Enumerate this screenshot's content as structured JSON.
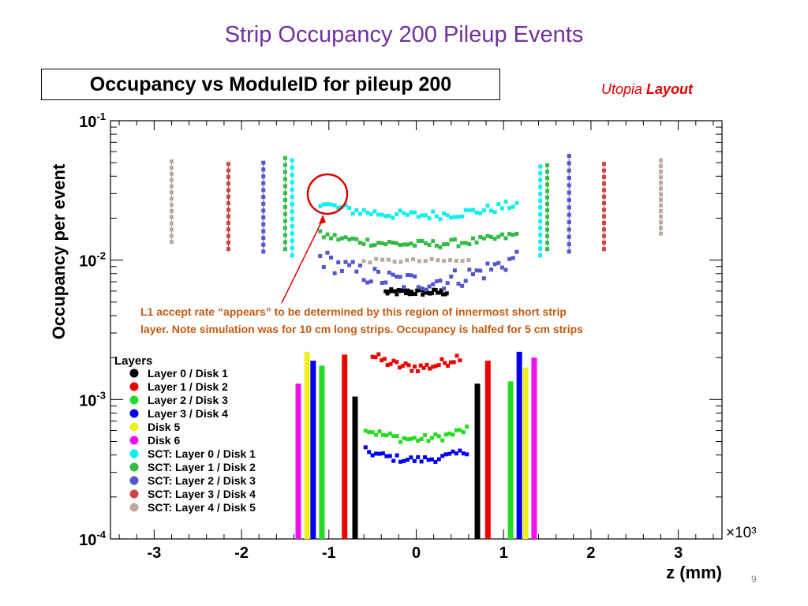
{
  "slide": {
    "title": "Strip Occupancy 200 Pileup Events",
    "number": "9"
  },
  "header": {
    "plot_title": "Occupancy vs ModuleID for pileup 200",
    "layout_label_1": "Utopia",
    "layout_label_2": "Layout"
  },
  "annotation": {
    "line1": "L1 accept rate “appears” to be determined by this region of innermost short strip",
    "line2": "layer. Note simulation was for 10 cm long strips. Occupancy is halfed for 5 cm strips",
    "color": "#c55a11",
    "circle_color": "#e00000"
  },
  "colors": {
    "title": "#7030a0",
    "layout": "#e00000"
  },
  "chart_data": {
    "type": "scatter",
    "xlabel": "z (mm)",
    "ylabel": "Occupancy per event",
    "x_multiplier": "×10³",
    "x_scale": "linear",
    "y_scale": "log",
    "xlim": [
      -3.5,
      3.5
    ],
    "ylim": [
      0.0001,
      0.1
    ],
    "xticks": [
      {
        "v": -3,
        "label": "-3"
      },
      {
        "v": -2,
        "label": "-2"
      },
      {
        "v": -1,
        "label": "-1"
      },
      {
        "v": 0,
        "label": "0"
      },
      {
        "v": 1,
        "label": "1"
      },
      {
        "v": 2,
        "label": "2"
      },
      {
        "v": 3,
        "label": "3"
      }
    ],
    "yticks": [
      {
        "v": 0.1,
        "base": "10",
        "exp": "-1"
      },
      {
        "v": 0.01,
        "base": "10",
        "exp": "-2"
      },
      {
        "v": 0.001,
        "base": "10",
        "exp": "-3"
      },
      {
        "v": 0.0001,
        "base": "10",
        "exp": "-4"
      }
    ],
    "legend_title": "Layers",
    "legend_position": "lower-left",
    "series": [
      {
        "name": "Layer 0 / Disk 1",
        "color": "#000000",
        "bands": [
          {
            "x0": -0.35,
            "x1": 0.35,
            "lo": 0.0055,
            "hi": 0.0065,
            "shape": "flat",
            "n": 34
          }
        ],
        "columns": [
          {
            "x": -0.7,
            "lo": 0.0001,
            "hi": 0.00105
          },
          {
            "x": 0.7,
            "lo": 0.0001,
            "hi": 0.0013
          }
        ]
      },
      {
        "name": "Layer 1 / Disk 2",
        "color": "#ee0000",
        "bands": [
          {
            "x0": -0.5,
            "x1": 0.5,
            "lo": 0.0017,
            "hi": 0.0022,
            "shape": "bowl",
            "n": 30
          }
        ],
        "columns": [
          {
            "x": -0.82,
            "lo": 0.0001,
            "hi": 0.0021
          },
          {
            "x": 0.82,
            "lo": 0.0001,
            "hi": 0.0019
          }
        ]
      },
      {
        "name": "Layer 2 / Disk 3",
        "color": "#22dd22",
        "bands": [
          {
            "x0": -0.58,
            "x1": 0.58,
            "lo": 0.00052,
            "hi": 0.00065,
            "shape": "bowl",
            "n": 30
          }
        ],
        "columns": [
          {
            "x": -1.08,
            "lo": 0.0001,
            "hi": 0.00175
          },
          {
            "x": 1.08,
            "lo": 0.0001,
            "hi": 0.00135
          }
        ]
      },
      {
        "name": "Layer 3 / Disk 4",
        "color": "#0000ee",
        "bands": [
          {
            "x0": -0.58,
            "x1": 0.58,
            "lo": 0.00037,
            "hi": 0.00045,
            "shape": "bowl",
            "n": 30
          }
        ],
        "columns": [
          {
            "x": -1.18,
            "lo": 0.0001,
            "hi": 0.0019
          },
          {
            "x": 1.18,
            "lo": 0.0001,
            "hi": 0.0022
          }
        ]
      },
      {
        "name": "Disk 5",
        "color": "#eeee22",
        "bands": [],
        "columns": [
          {
            "x": -1.25,
            "lo": 0.0001,
            "hi": 0.0022
          },
          {
            "x": 1.25,
            "lo": 0.0001,
            "hi": 0.0017
          }
        ]
      },
      {
        "name": "Disk 6",
        "color": "#ee11ee",
        "bands": [],
        "columns": [
          {
            "x": -1.35,
            "lo": 0.0001,
            "hi": 0.0013
          },
          {
            "x": 1.35,
            "lo": 0.0001,
            "hi": 0.002
          }
        ]
      },
      {
        "name": "SCT: Layer 0 / Disk 1",
        "color": "#11eeee",
        "bands": [
          {
            "x0": -1.1,
            "x1": 1.15,
            "lo": 0.021,
            "hi": 0.027,
            "shape": "bowl",
            "n": 55
          }
        ],
        "columns": [
          {
            "x": -1.42,
            "lo": 0.0108,
            "hi": 0.052
          },
          {
            "x": 1.42,
            "lo": 0.0108,
            "hi": 0.047
          }
        ]
      },
      {
        "name": "SCT: Layer 1 / Disk 2",
        "color": "#33bb44",
        "bands": [
          {
            "x0": -1.1,
            "x1": 1.15,
            "lo": 0.013,
            "hi": 0.016,
            "shape": "bowl",
            "n": 55
          }
        ],
        "columns": [
          {
            "x": -1.5,
            "lo": 0.012,
            "hi": 0.054
          },
          {
            "x": 1.5,
            "lo": 0.012,
            "hi": 0.048
          }
        ]
      },
      {
        "name": "SCT: Layer 2 / Disk 3",
        "color": "#5555cc",
        "bands": [
          {
            "x0": -1.1,
            "x1": 1.15,
            "lo": 0.007,
            "hi": 0.012,
            "shape": "bowl",
            "n": 55
          }
        ],
        "columns": [
          {
            "x": -1.75,
            "lo": 0.0115,
            "hi": 0.05
          },
          {
            "x": 1.75,
            "lo": 0.0115,
            "hi": 0.056
          }
        ]
      },
      {
        "name": "SCT: Layer 3 / Disk 4",
        "color": "#cc4444",
        "bands": [],
        "columns": [
          {
            "x": -2.15,
            "lo": 0.012,
            "hi": 0.049
          },
          {
            "x": 2.15,
            "lo": 0.012,
            "hi": 0.049
          }
        ]
      },
      {
        "name": "SCT: Layer 4 / Disk 5",
        "color": "#bbaaa0",
        "bands": [
          {
            "x0": -0.6,
            "x1": 0.6,
            "lo": 0.0095,
            "hi": 0.0105,
            "shape": "flat",
            "n": 18
          }
        ],
        "columns": [
          {
            "x": -2.8,
            "lo": 0.0135,
            "hi": 0.051
          },
          {
            "x": 2.8,
            "lo": 0.0155,
            "hi": 0.052
          }
        ]
      }
    ]
  }
}
